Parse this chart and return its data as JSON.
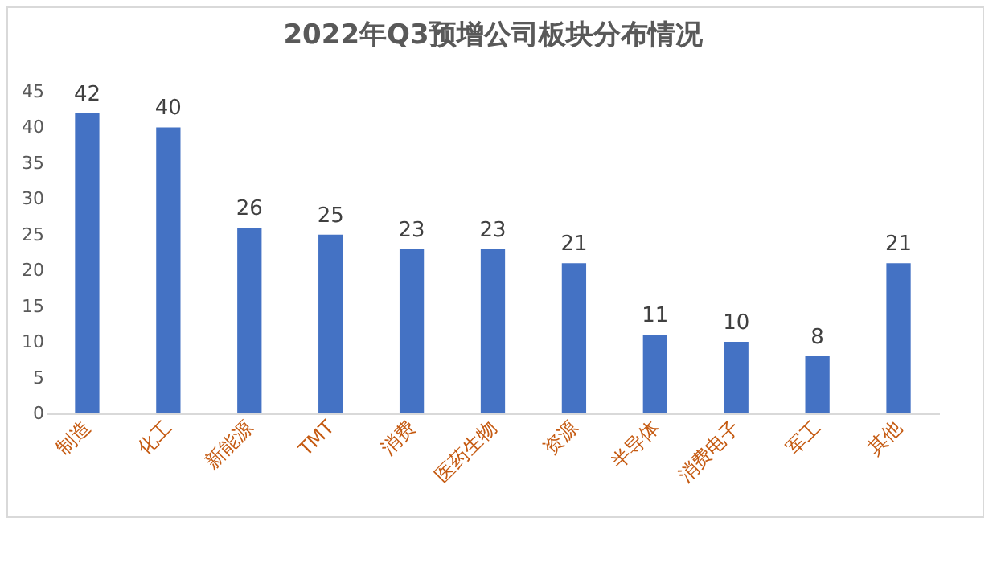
{
  "chart_data": {
    "type": "bar",
    "title": "2022年Q3预增公司板块分布情况",
    "categories": [
      "制造",
      "化工",
      "新能源",
      "TMT",
      "消费",
      "医药生物",
      "资源",
      "半导体",
      "消费电子",
      "军工",
      "其他"
    ],
    "values": [
      42,
      40,
      26,
      25,
      23,
      23,
      21,
      11,
      10,
      8,
      21
    ],
    "color": "#4472c4",
    "ylim": [
      0,
      45
    ],
    "yticks": [
      0,
      5,
      10,
      15,
      20,
      25,
      30,
      35,
      40,
      45
    ],
    "data_labels": true
  }
}
